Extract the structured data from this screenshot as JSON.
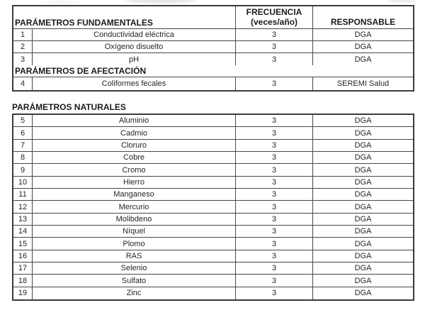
{
  "table": {
    "header": {
      "parameters_title": "PARÁMETROS FUNDAMENTALES",
      "frequency_line1": "FRECUENCIA",
      "frequency_line2": "(veces/año)",
      "responsible_title": "RESPONSABLE"
    },
    "sections": {
      "afectacion_title": "PARÁMETROS DE AFECTACIÓN",
      "naturales_title": "PARÁMETROS NATURALES"
    },
    "rows_fundamentales": [
      {
        "num": "1",
        "name": "Conductividad eléctrica",
        "freq": "3",
        "resp": "DGA"
      },
      {
        "num": "2",
        "name": "Oxígeno disuelto",
        "freq": "3",
        "resp": "DGA"
      },
      {
        "num": "3",
        "name": "pH",
        "freq": "3",
        "resp": "DGA"
      }
    ],
    "rows_afectacion": [
      {
        "num": "4",
        "name": "Coliformes fecales",
        "freq": "3",
        "resp": "SEREMI Salud"
      }
    ],
    "rows_naturales": [
      {
        "num": "5",
        "name": "Aluminio",
        "freq": "3",
        "resp": "DGA"
      },
      {
        "num": "6",
        "name": "Cadmio",
        "freq": "3",
        "resp": "DGA"
      },
      {
        "num": "7",
        "name": "Cloruro",
        "freq": "3",
        "resp": "DGA"
      },
      {
        "num": "8",
        "name": "Cobre",
        "freq": "3",
        "resp": "DGA"
      },
      {
        "num": "9",
        "name": "Cromo",
        "freq": "3",
        "resp": "DGA"
      },
      {
        "num": "10",
        "name": "Hierro",
        "freq": "3",
        "resp": "DGA"
      },
      {
        "num": "11",
        "name": "Manganeso",
        "freq": "3",
        "resp": "DGA"
      },
      {
        "num": "12",
        "name": "Mercurio",
        "freq": "3",
        "resp": "DGA"
      },
      {
        "num": "13",
        "name": "Molibdeno",
        "freq": "3",
        "resp": "DGA"
      },
      {
        "num": "14",
        "name": "Níquel",
        "freq": "3",
        "resp": "DGA"
      },
      {
        "num": "15",
        "name": "Plomo",
        "freq": "3",
        "resp": "DGA"
      },
      {
        "num": "16",
        "name": "RAS",
        "freq": "3",
        "resp": "DGA"
      },
      {
        "num": "17",
        "name": "Selenio",
        "freq": "3",
        "resp": "DGA"
      },
      {
        "num": "18",
        "name": "Sulfato",
        "freq": "3",
        "resp": "DGA"
      },
      {
        "num": "19",
        "name": "Zinc",
        "freq": "3",
        "resp": "DGA"
      }
    ],
    "colors": {
      "border": "#3d3d3d",
      "text": "#262626",
      "background": "#ffffff"
    }
  }
}
